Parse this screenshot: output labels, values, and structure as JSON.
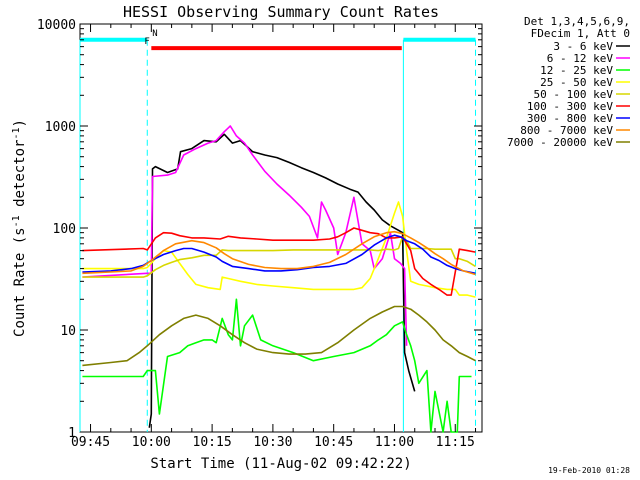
{
  "chart_data": {
    "type": "line",
    "title": "HESSI Observing Summary Count Rates",
    "xlabel": "Start Time (11-Aug-02 09:42:22)",
    "ylabel": "Count Rate (s",
    "ylabel_sup": "-1",
    "ylabel_rest": " detector",
    "ylabel_end": ")",
    "x_ticks": [
      "09:45",
      "10:00",
      "10:15",
      "10:30",
      "10:45",
      "11:00",
      "11:15"
    ],
    "x_tick_minutes": [
      105,
      120,
      135,
      150,
      165,
      180,
      195
    ],
    "xlim": [
      102.4,
      201.6
    ],
    "y_scale": "log",
    "y_ticks": [
      "1",
      "10",
      "100",
      "1000",
      "10000"
    ],
    "ylim": [
      1,
      10000
    ],
    "grid": false,
    "legend_header": [
      "Det 1,3,4,5,6,9,",
      "FDecim 1, Att 0"
    ],
    "legend_placement": "right",
    "footer_date": "19-Feb-2010 01:28",
    "flags": [
      {
        "label": "N",
        "color": "#00ffff",
        "y": 7000,
        "segments": [
          [
            102.4,
            119.0
          ],
          [
            182.2,
            200.0
          ]
        ],
        "vlines": [
          102.4,
          119.0,
          182.2,
          200.0
        ]
      },
      {
        "label": "F",
        "color": "#ff0000",
        "y": 5800,
        "segments": [
          [
            120.0,
            181.8
          ]
        ],
        "vlines": []
      }
    ],
    "series": [
      {
        "name": "3 - 6 keV",
        "color": "#000000",
        "x": [
          119.5,
          120.0,
          120.3,
          121,
          124,
          126.5,
          127.2,
          130,
          133,
          136,
          138,
          140,
          142,
          145,
          148,
          151,
          154,
          157,
          160,
          163,
          166,
          169,
          171,
          173,
          175,
          177,
          179,
          181,
          182,
          182.5,
          183.5,
          185
        ],
        "y": [
          1.1,
          1.5,
          380,
          400,
          350,
          380,
          560,
          600,
          720,
          700,
          830,
          680,
          720,
          560,
          520,
          490,
          440,
          390,
          350,
          310,
          270,
          240,
          225,
          180,
          150,
          120,
          105,
          95,
          90,
          6,
          4,
          2.5
        ]
      },
      {
        "name": "6 - 12 keV",
        "color": "#ff00ff",
        "x": [
          103,
          119,
          120.0,
          120.3,
          124,
          126,
          128,
          131,
          134,
          136,
          138,
          139.5,
          141,
          143,
          145,
          148,
          151,
          154,
          157,
          159,
          161,
          162,
          163,
          165,
          166,
          168,
          170,
          172,
          174,
          175,
          177,
          179,
          180,
          181.5,
          182.5,
          183
        ],
        "y": [
          33,
          36,
          36,
          320,
          330,
          350,
          520,
          600,
          680,
          720,
          880,
          1000,
          800,
          680,
          520,
          360,
          270,
          210,
          160,
          130,
          80,
          180,
          150,
          100,
          55,
          90,
          200,
          70,
          60,
          40,
          50,
          90,
          50,
          45,
          40,
          7
        ]
      },
      {
        "name": "12 - 25 keV",
        "color": "#00ff00",
        "x": [
          103,
          118,
          119,
          121,
          122,
          124,
          127,
          129,
          131,
          133,
          135,
          136,
          137.5,
          139,
          140,
          141,
          142,
          143,
          145,
          147,
          150,
          155,
          160,
          165,
          170,
          174,
          176,
          178,
          180,
          182,
          183,
          184,
          185,
          186,
          188,
          189,
          190,
          192,
          193,
          194,
          195.5,
          196,
          197,
          199
        ],
        "y": [
          3.5,
          3.5,
          4,
          4,
          1.5,
          5.5,
          6,
          7,
          7.5,
          8,
          8,
          7.5,
          13,
          9,
          8,
          20,
          7,
          11,
          14,
          8,
          7,
          6,
          5,
          5.5,
          6,
          7,
          8,
          9,
          11,
          12,
          9,
          7,
          5,
          3,
          4,
          1,
          2.5,
          1,
          2,
          1,
          1,
          3.5,
          3.5,
          3.5
        ]
      },
      {
        "name": "25 - 50 keV",
        "color": "#ffff00",
        "x": [
          103,
          118,
          119,
          121,
          123,
          125,
          127,
          129,
          131,
          134,
          137,
          137.5,
          139,
          142,
          146,
          150,
          155,
          160,
          165,
          168,
          170,
          172,
          174,
          176,
          178,
          180,
          181,
          182,
          183,
          184,
          186,
          188,
          190,
          193,
          195,
          196,
          198,
          200
        ],
        "y": [
          40,
          40,
          41,
          50,
          60,
          58,
          45,
          35,
          28,
          26,
          25,
          33,
          32,
          30,
          28,
          27,
          26,
          25,
          25,
          25,
          25,
          26,
          32,
          50,
          80,
          140,
          180,
          130,
          60,
          30,
          28,
          27,
          26,
          25,
          25,
          22,
          22,
          21
        ]
      },
      {
        "name": "50 - 100 keV",
        "color": "#d7d700",
        "x": [
          103,
          118,
          119,
          121,
          123,
          125,
          127,
          130,
          133,
          136,
          137.5,
          139,
          142,
          146,
          150,
          155,
          160,
          165,
          170,
          174,
          176,
          178,
          180,
          181,
          182,
          183,
          184,
          186,
          188,
          190,
          192,
          194,
          195,
          196,
          198,
          200
        ],
        "y": [
          33,
          33,
          34,
          39,
          43,
          46,
          49,
          51,
          54,
          54,
          61,
          60,
          60,
          60,
          60,
          61,
          61,
          61,
          61,
          61,
          60,
          62,
          61,
          63,
          82,
          75,
          63,
          63,
          63,
          62,
          62,
          62,
          50,
          50,
          47,
          42
        ]
      },
      {
        "name": "100 - 300 keV",
        "color": "#ff0000",
        "x": [
          103,
          118,
          119,
          121,
          123,
          125,
          127,
          130,
          133,
          137,
          139,
          142,
          146,
          150,
          155,
          160,
          164,
          166,
          168,
          170,
          172,
          174,
          176,
          178,
          180,
          182,
          183,
          184,
          185,
          187,
          189,
          191,
          193,
          194,
          196,
          198,
          200
        ],
        "y": [
          60,
          63,
          61,
          80,
          90,
          89,
          84,
          80,
          80,
          78,
          83,
          80,
          78,
          76,
          76,
          76,
          78,
          82,
          90,
          100,
          95,
          90,
          88,
          80,
          80,
          82,
          70,
          60,
          40,
          32,
          28,
          25,
          22,
          22,
          62,
          60,
          58
        ]
      },
      {
        "name": "300 - 800 keV",
        "color": "#0000ff",
        "x": [
          103,
          110,
          115,
          118,
          120,
          123,
          126,
          128,
          130,
          133,
          136,
          137.5,
          140,
          144,
          148,
          152,
          156,
          160,
          164,
          168,
          172,
          175,
          178,
          180,
          181.5,
          183,
          185,
          187,
          189,
          191,
          193,
          195,
          197,
          200
        ],
        "y": [
          37,
          38,
          40,
          43,
          48,
          55,
          60,
          63,
          63,
          58,
          52,
          47,
          42,
          40,
          38,
          38,
          39,
          41,
          42,
          45,
          55,
          68,
          80,
          85,
          82,
          75,
          70,
          62,
          52,
          48,
          43,
          40,
          38,
          36
        ]
      },
      {
        "name": "800 - 7000 keV",
        "color": "#ff8800",
        "x": [
          103,
          110,
          115,
          118,
          120,
          123,
          126,
          130,
          133,
          136,
          138,
          140,
          144,
          148,
          152,
          156,
          160,
          164,
          168,
          172,
          175,
          178,
          180,
          182,
          184,
          186,
          188,
          190,
          192,
          194,
          197,
          200
        ],
        "y": [
          36,
          37,
          38,
          42,
          48,
          60,
          70,
          75,
          72,
          64,
          56,
          50,
          44,
          41,
          40,
          40,
          42,
          46,
          55,
          70,
          82,
          90,
          92,
          88,
          80,
          72,
          64,
          56,
          50,
          44,
          38,
          35
        ]
      },
      {
        "name": "7000 - 20000 keV",
        "color": "#7f7f00",
        "x": [
          103,
          110,
          114,
          117,
          119,
          122,
          125,
          128,
          131,
          134,
          137,
          140,
          143,
          146,
          150,
          154,
          158,
          162,
          166,
          170,
          174,
          177,
          180,
          182,
          184,
          186,
          188,
          190,
          192,
          194,
          196,
          198,
          200
        ],
        "y": [
          4.5,
          4.8,
          5,
          6,
          7,
          9,
          11,
          13,
          14,
          13,
          11,
          9,
          7.5,
          6.5,
          6,
          5.8,
          5.8,
          6,
          7.5,
          10,
          13,
          15,
          17,
          17,
          16,
          14,
          12,
          10,
          8,
          7,
          6,
          5.5,
          5
        ]
      }
    ]
  }
}
